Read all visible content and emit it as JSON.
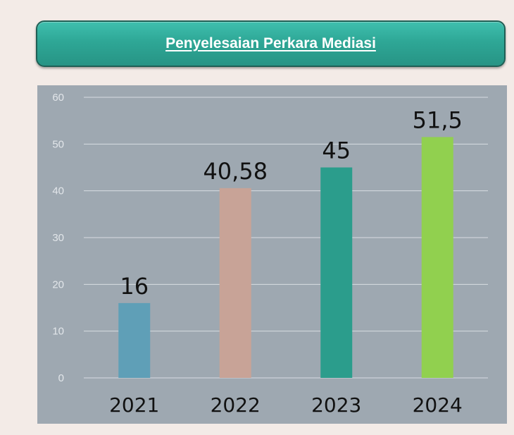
{
  "header": {
    "title": "Penyelesaian Perkara Mediasi"
  },
  "chart_data": {
    "type": "bar",
    "title": "Penyelesaian Perkara Mediasi",
    "categories": [
      "2021",
      "2022",
      "2023",
      "2024"
    ],
    "values": [
      16,
      40.58,
      45,
      51.5
    ],
    "data_labels": [
      "16",
      "40,58",
      "45",
      "51,5"
    ],
    "yticks": [
      0,
      10,
      20,
      30,
      40,
      50,
      60
    ],
    "ylim": [
      0,
      60
    ],
    "grid": true,
    "bar_colors": [
      "#5f9fb7",
      "#c8a397",
      "#2b9d8c",
      "#91d04f"
    ],
    "background": "#9ea8b1",
    "gridline_color": "#d8dde2"
  }
}
